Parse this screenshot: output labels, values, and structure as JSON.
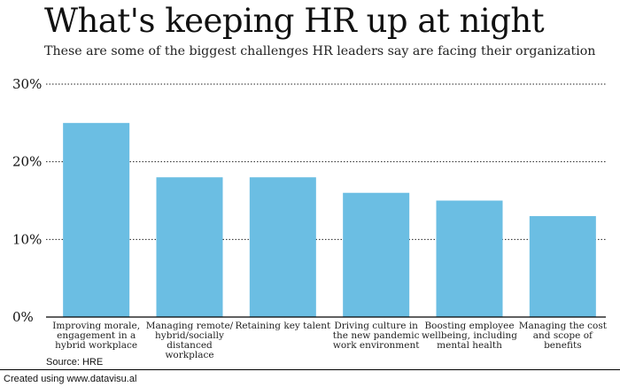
{
  "chart_data": {
    "type": "bar",
    "title": "What's keeping HR up at night",
    "subtitle": "These are some of the biggest challenges HR leaders say are facing their organization",
    "categories": [
      [
        "Improving morale,",
        "engagement in a",
        "hybrid workplace"
      ],
      [
        "Managing remote/",
        "hybrid/socially",
        "distanced",
        "workplace"
      ],
      [
        "Retaining key talent"
      ],
      [
        "Driving culture in",
        "the new pandemic",
        "work environment"
      ],
      [
        "Boosting employee",
        "wellbeing, including",
        "mental health"
      ],
      [
        "Managing the cost",
        "and scope of",
        "benefits"
      ]
    ],
    "values": [
      25,
      18,
      18,
      16,
      15,
      13
    ],
    "ylim": [
      0,
      30
    ],
    "yticks": [
      0,
      10,
      20,
      30
    ],
    "ytick_labels": [
      "0%",
      "10%",
      "20%",
      "30%"
    ],
    "bar_color": "#6bbee3",
    "grid": "dotted horizontal",
    "source": "Source: HRE",
    "credit": "Created using www.datavisu.al"
  }
}
